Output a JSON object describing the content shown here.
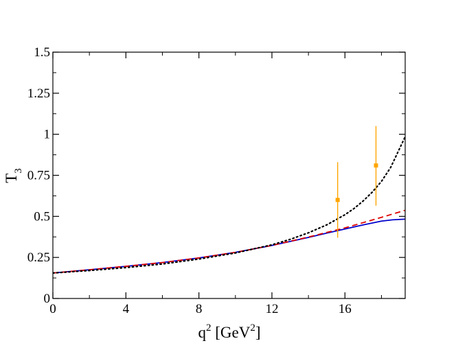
{
  "chart_data": {
    "type": "line",
    "xlabel": {
      "base": "q",
      "sup": "2",
      "unit_open": " [GeV",
      "unit_sup": "2",
      "unit_close": "]"
    },
    "ylabel": {
      "base": "T",
      "sub": "3"
    },
    "xlim": [
      0,
      19.3
    ],
    "ylim": [
      0,
      1.5
    ],
    "x_ticks": [
      0,
      4,
      8,
      12,
      16
    ],
    "x_tick_labels": [
      "0",
      "4",
      "8",
      "12",
      "16"
    ],
    "y_ticks": [
      0,
      0.25,
      0.5,
      0.75,
      1,
      1.25,
      1.5
    ],
    "y_tick_labels": [
      "0",
      "0.25",
      "0.5",
      "0.75",
      "1",
      "1.25",
      "1.5"
    ],
    "grid": false,
    "series": [
      {
        "style": "solid",
        "color": "#0000cc",
        "x": [
          0,
          2,
          4,
          6,
          8,
          10,
          12,
          14,
          15,
          16,
          17,
          18,
          18.6,
          19.3
        ],
        "y": [
          0.155,
          0.175,
          0.196,
          0.219,
          0.247,
          0.281,
          0.323,
          0.372,
          0.398,
          0.423,
          0.448,
          0.471,
          0.479,
          0.483
        ]
      },
      {
        "style": "dashed",
        "color": "#dd0000",
        "x": [
          0,
          2,
          4,
          6,
          8,
          10,
          12,
          14,
          15,
          16,
          17,
          18,
          19.3
        ],
        "y": [
          0.155,
          0.175,
          0.196,
          0.219,
          0.247,
          0.281,
          0.323,
          0.374,
          0.402,
          0.43,
          0.462,
          0.494,
          0.537
        ]
      },
      {
        "style": "dotted",
        "color": "#000000",
        "x": [
          0,
          2,
          4,
          6,
          8,
          10,
          12,
          13,
          14,
          15,
          16,
          16.5,
          17,
          17.5,
          18,
          18.5,
          19.3
        ],
        "y": [
          0.155,
          0.17,
          0.188,
          0.21,
          0.24,
          0.277,
          0.327,
          0.36,
          0.4,
          0.448,
          0.51,
          0.548,
          0.594,
          0.648,
          0.713,
          0.797,
          0.985
        ]
      }
    ],
    "points": {
      "color": "#ffa500",
      "x": [
        15.6,
        17.7
      ],
      "y": [
        0.6,
        0.81
      ],
      "y_low": [
        0.37,
        0.565
      ],
      "y_high": [
        0.83,
        1.05
      ]
    }
  }
}
